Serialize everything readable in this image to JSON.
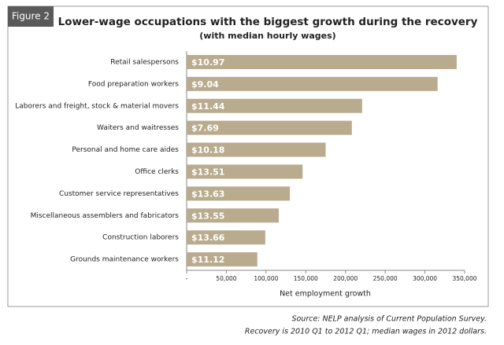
{
  "chart_data": {
    "type": "barh",
    "figure_label": "Figure 2",
    "title": "Lower-wage occupations with the biggest growth during the recovery",
    "subtitle": "(with median hourly wages)",
    "x_label": "Net employment growth",
    "categories": [
      "Retail salespersons",
      "Food preparation workers",
      "Laborers and freight, stock & material movers",
      "Waiters and waitresses",
      "Personal and home care aides",
      "Office clerks",
      "Customer service representatives",
      "Miscellaneous assemblers and fabricators",
      "Construction laborers",
      "Grounds maintenance workers"
    ],
    "values": [
      340000,
      316000,
      221000,
      208000,
      175000,
      146000,
      130000,
      116000,
      99000,
      89000
    ],
    "wage_labels": [
      "$10.97",
      "$9.04",
      "$11.44",
      "$7.69",
      "$10.18",
      "$13.51",
      "$13.63",
      "$13.55",
      "$13.66",
      "$11.12"
    ],
    "color": "#b9ab8e",
    "xlim": [
      0,
      350000
    ],
    "xticks": [
      {
        "value": 0,
        "label": "-"
      },
      {
        "value": 50000,
        "label": "50,000"
      },
      {
        "value": 100000,
        "label": "100,000"
      },
      {
        "value": 150000,
        "label": "150,000"
      },
      {
        "value": 200000,
        "label": "200,000"
      },
      {
        "value": 250000,
        "label": "250,000"
      },
      {
        "value": 300000,
        "label": "300,000"
      },
      {
        "value": 350000,
        "label": "350,000"
      }
    ],
    "notes": [
      "Source: NELP analysis of Current Population Survey.",
      "Recovery is 2010 Q1 to 2012 Q1; median wages in 2012 dollars."
    ]
  }
}
